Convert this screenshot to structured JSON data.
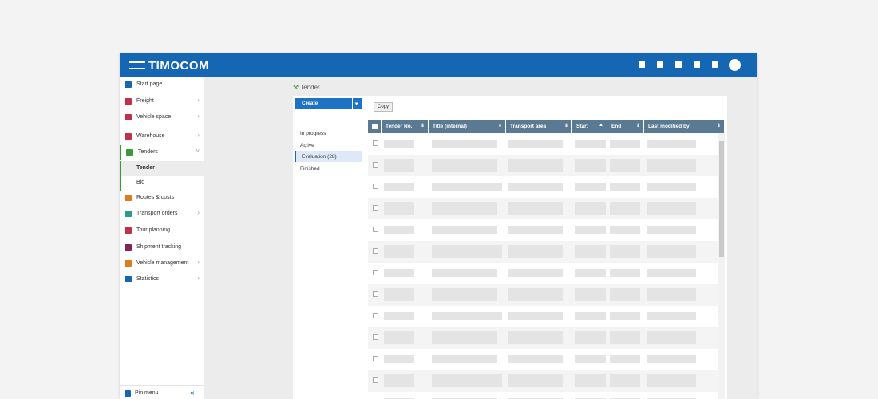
{
  "header": {
    "brand": "TIMOCOM"
  },
  "sidebar": {
    "items": [
      {
        "label": "Start page"
      },
      {
        "label": "Freight"
      },
      {
        "label": "Vehicle space"
      },
      {
        "label": "Warehouse"
      },
      {
        "label": "Tenders"
      },
      {
        "label": "Tender"
      },
      {
        "label": "Bid"
      },
      {
        "label": "Routes & costs"
      },
      {
        "label": "Transport orders"
      },
      {
        "label": "Tour planning"
      },
      {
        "label": "Shipment tracking"
      },
      {
        "label": "Vehicle management"
      },
      {
        "label": "Statistics"
      }
    ],
    "pin": "Pin menu"
  },
  "page": {
    "breadcrumb": "Tender",
    "create": "Create",
    "copy": "Copy",
    "filters": [
      "In progress",
      "Active",
      "Evaluation (28)",
      "Finished"
    ]
  },
  "table": {
    "columns": [
      "Tender No.",
      "Title (internal)",
      "Transport area",
      "Start",
      "End",
      "Last modified by"
    ]
  }
}
